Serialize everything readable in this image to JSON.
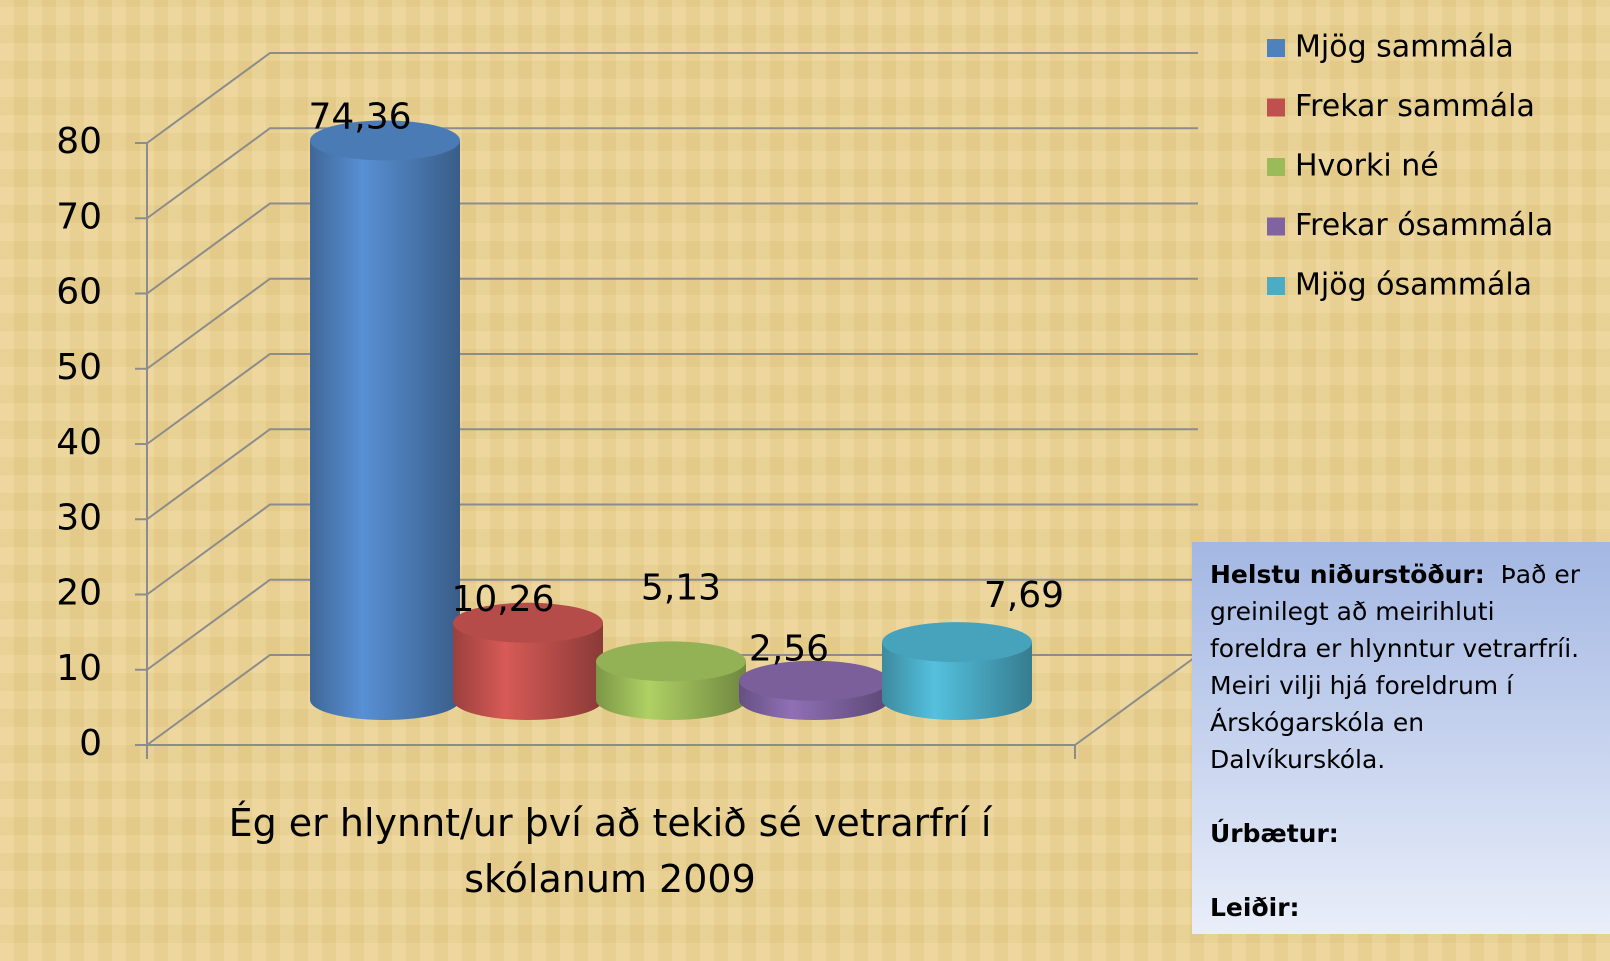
{
  "chart_data": {
    "type": "bar3d",
    "categories": [
      "Ég er hlynnt/ur því að tekið sé vetrarfrí í skólanum 2009"
    ],
    "series": [
      {
        "name": "Mjög sammála",
        "color": "#4f81bd",
        "values": [
          74.36
        ],
        "value_labels": [
          "74,36"
        ]
      },
      {
        "name": "Frekar sammála",
        "color": "#c0504d",
        "values": [
          10.26
        ],
        "value_labels": [
          "10,26"
        ]
      },
      {
        "name": "Hvorki né",
        "color": "#9bbb59",
        "values": [
          5.13
        ],
        "value_labels": [
          "5,13"
        ]
      },
      {
        "name": "Frekar ósammála",
        "color": "#8064a2",
        "values": [
          2.56
        ],
        "value_labels": [
          "2,56"
        ]
      },
      {
        "name": "Mjög ósammála",
        "color": "#4bacc6",
        "values": [
          7.69
        ],
        "value_labels": [
          "7,69"
        ]
      }
    ],
    "ylim": [
      0,
      80
    ],
    "yticks": [
      0,
      10,
      20,
      30,
      40,
      50,
      60,
      70,
      80
    ],
    "grid": true,
    "legend": "right"
  },
  "text_box": {
    "heading": "Helstu niðurstöður:",
    "text": "Það er greinilegt að meirihluti foreldra er hlynntur vetrarfríi. Meiri vilji hjá foreldrum í Árskógarskóla en Dalvíkurskóla.",
    "sections": [
      "Úrbætur:",
      "Leiðir:"
    ]
  }
}
